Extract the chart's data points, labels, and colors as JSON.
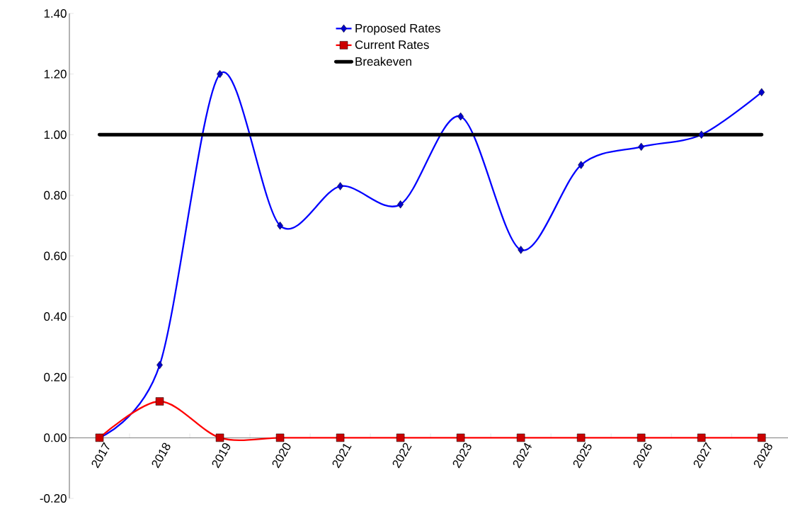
{
  "chart_data": {
    "type": "line",
    "categories": [
      "2017",
      "2018",
      "2019",
      "2020",
      "2021",
      "2022",
      "2023",
      "2024",
      "2025",
      "2026",
      "2027",
      "2028"
    ],
    "series": [
      {
        "name": "Proposed Rates",
        "color": "#0000ff",
        "marker": "diamond",
        "values": [
          0,
          0.24,
          1.2,
          0.7,
          0.83,
          0.77,
          1.06,
          0.62,
          0.9,
          0.96,
          1.0,
          1.14
        ]
      },
      {
        "name": "Current Rates",
        "color": "#ff0000",
        "marker": "square",
        "values": [
          0,
          0.12,
          0,
          0,
          0,
          0,
          0,
          0,
          0,
          0,
          0,
          0
        ]
      },
      {
        "name": "Breakeven",
        "color": "#000000",
        "marker": "none",
        "values": [
          1,
          1,
          1,
          1,
          1,
          1,
          1,
          1,
          1,
          1,
          1,
          1
        ]
      }
    ],
    "ylim": [
      -0.2,
      1.4
    ],
    "yticks": [
      {
        "value": -0.2,
        "label": "-0.20"
      },
      {
        "value": 0,
        "label": "0.00"
      },
      {
        "value": 0.2,
        "label": "0.20"
      },
      {
        "value": 0.4,
        "label": "0.40"
      },
      {
        "value": 0.6,
        "label": "0.60"
      },
      {
        "value": 0.8,
        "label": "0.80"
      },
      {
        "value": 1.0,
        "label": "1.00"
      },
      {
        "value": 1.2,
        "label": "1.20"
      },
      {
        "value": 1.4,
        "label": "1.40"
      }
    ],
    "grid": false,
    "legend": "top",
    "line_style": "solid"
  }
}
